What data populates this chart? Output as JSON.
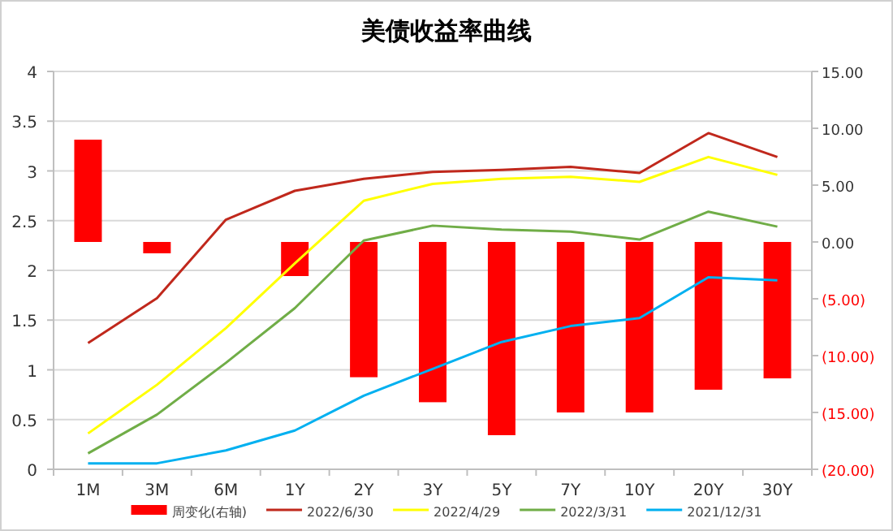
{
  "chart_data": {
    "type": "line",
    "title": "美债收益率曲线",
    "categories": [
      "1M",
      "3M",
      "6M",
      "1Y",
      "2Y",
      "3Y",
      "5Y",
      "7Y",
      "10Y",
      "20Y",
      "30Y"
    ],
    "series": [
      {
        "name": "周变化(右轴)",
        "type": "bar",
        "axis": "y2",
        "color": "#ff0000",
        "values": [
          9.0,
          -1.0,
          null,
          -3.0,
          -11.9,
          -14.1,
          -17.0,
          -15.0,
          -15.0,
          -13.0,
          -12.0
        ]
      },
      {
        "name": "2022/6/30",
        "color": "#c0281c",
        "values": [
          1.27,
          1.72,
          2.51,
          2.8,
          2.92,
          2.99,
          3.01,
          3.04,
          2.98,
          3.38,
          3.14
        ]
      },
      {
        "name": "2022/4/29",
        "color": "#ffff00",
        "values": [
          0.36,
          0.85,
          1.42,
          2.07,
          2.7,
          2.87,
          2.92,
          2.94,
          2.89,
          3.14,
          2.96
        ]
      },
      {
        "name": "2022/3/31",
        "color": "#70ad47",
        "values": [
          0.16,
          0.55,
          1.07,
          1.62,
          2.3,
          2.45,
          2.41,
          2.39,
          2.31,
          2.59,
          2.44
        ]
      },
      {
        "name": "2021/12/31",
        "color": "#00b0f0",
        "values": [
          0.06,
          0.06,
          0.19,
          0.39,
          0.74,
          1.01,
          1.28,
          1.44,
          1.52,
          1.93,
          1.9
        ]
      }
    ],
    "ylim": [
      0,
      4
    ],
    "yticks": [
      0,
      0.5,
      1,
      1.5,
      2,
      2.5,
      3,
      3.5,
      4
    ],
    "y2lim": [
      -20,
      15
    ],
    "y2ticks": [
      {
        "value": -20,
        "label": "(20.00)"
      },
      {
        "value": -15,
        "label": "(15.00)"
      },
      {
        "value": -10,
        "label": "(10.00)"
      },
      {
        "value": -5,
        "label": "(5.00)"
      },
      {
        "value": 0,
        "label": "0.00"
      },
      {
        "value": 5,
        "label": "5.00"
      },
      {
        "value": 10,
        "label": "10.00"
      },
      {
        "value": 15,
        "label": "15.00"
      }
    ],
    "grid": "y",
    "legend": "bottom"
  }
}
